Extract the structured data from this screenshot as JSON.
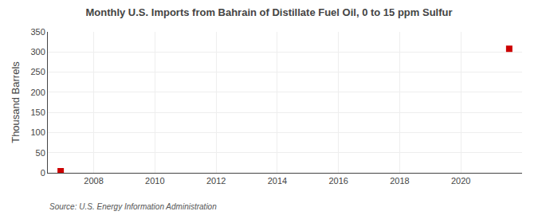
{
  "chart_data": {
    "type": "scatter",
    "title": "Monthly U.S. Imports from Bahrain of Distillate Fuel Oil, 0 to 15 ppm Sulfur",
    "ylabel": "Thousand Barrels",
    "annotations": [
      "Source: U.S. Energy Information Administration"
    ],
    "x": [
      2006.92,
      2021.58
    ],
    "values": [
      4,
      308
    ],
    "color": "#cc0000",
    "marker": "square",
    "xlim": [
      2006.5,
      2022.0
    ],
    "ylim": [
      0,
      350
    ],
    "xticks": [
      2008,
      2010,
      2012,
      2014,
      2016,
      2018,
      2020
    ],
    "yticks": [
      0,
      50,
      100,
      150,
      200,
      250,
      300,
      350
    ],
    "grid": true
  }
}
